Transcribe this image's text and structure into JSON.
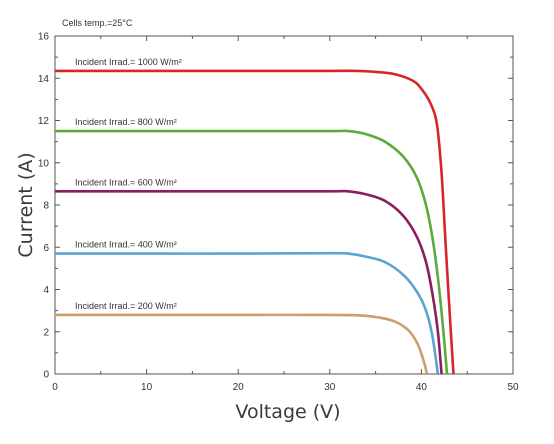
{
  "chart_data": {
    "type": "line",
    "title": "",
    "annotation": "Cells temp.=25°C",
    "xlabel": "Voltage (V)",
    "ylabel": "Current (A)",
    "xlim": [
      0,
      50
    ],
    "ylim": [
      0,
      16
    ],
    "x_ticks": [
      0,
      10,
      20,
      30,
      40,
      50
    ],
    "y_ticks": [
      0,
      2,
      4,
      6,
      8,
      10,
      12,
      14,
      16
    ],
    "grid": false,
    "series": [
      {
        "name": "Incident Irrad.= 1000 W/m²",
        "color": "#d7262b",
        "points": [
          [
            0,
            14.35
          ],
          [
            10,
            14.35
          ],
          [
            20,
            14.35
          ],
          [
            30,
            14.35
          ],
          [
            33,
            14.35
          ],
          [
            35,
            14.3
          ],
          [
            37,
            14.2
          ],
          [
            39,
            13.9
          ],
          [
            40,
            13.5
          ],
          [
            41,
            12.8
          ],
          [
            41.7,
            11.8
          ],
          [
            42.2,
            9.5
          ],
          [
            42.6,
            6.5
          ],
          [
            43.0,
            3.5
          ],
          [
            43.5,
            0
          ]
        ]
      },
      {
        "name": "Incident Irrad.= 800 W/m²",
        "color": "#5aaa3c",
        "points": [
          [
            0,
            11.5
          ],
          [
            10,
            11.5
          ],
          [
            20,
            11.5
          ],
          [
            30,
            11.5
          ],
          [
            32,
            11.5
          ],
          [
            34,
            11.35
          ],
          [
            36,
            11.0
          ],
          [
            38,
            10.3
          ],
          [
            39.5,
            9.3
          ],
          [
            40.5,
            8.0
          ],
          [
            41.3,
            6.2
          ],
          [
            41.9,
            4.2
          ],
          [
            42.4,
            2.0
          ],
          [
            42.8,
            0
          ]
        ]
      },
      {
        "name": "Incident Irrad.= 600 W/m²",
        "color": "#8b1d5f",
        "points": [
          [
            0,
            8.65
          ],
          [
            10,
            8.65
          ],
          [
            20,
            8.65
          ],
          [
            30,
            8.65
          ],
          [
            32,
            8.65
          ],
          [
            34,
            8.5
          ],
          [
            36,
            8.2
          ],
          [
            38,
            7.5
          ],
          [
            39.5,
            6.5
          ],
          [
            40.5,
            5.3
          ],
          [
            41.2,
            3.8
          ],
          [
            41.8,
            2.0
          ],
          [
            42.2,
            0
          ]
        ]
      },
      {
        "name": "Incident Irrad.= 400 W/m²",
        "color": "#5ba3d0",
        "points": [
          [
            0,
            5.7
          ],
          [
            10,
            5.7
          ],
          [
            20,
            5.7
          ],
          [
            30,
            5.72
          ],
          [
            32,
            5.7
          ],
          [
            34,
            5.55
          ],
          [
            36,
            5.3
          ],
          [
            38,
            4.7
          ],
          [
            39.5,
            3.9
          ],
          [
            40.5,
            3.0
          ],
          [
            41.2,
            1.8
          ],
          [
            41.8,
            0
          ]
        ]
      },
      {
        "name": "Incident Irrad.= 200 W/m²",
        "color": "#c9a06c",
        "points": [
          [
            0,
            2.8
          ],
          [
            10,
            2.8
          ],
          [
            20,
            2.8
          ],
          [
            30,
            2.8
          ],
          [
            33,
            2.78
          ],
          [
            35,
            2.7
          ],
          [
            37,
            2.5
          ],
          [
            38.5,
            2.1
          ],
          [
            39.5,
            1.5
          ],
          [
            40.2,
            0.7
          ],
          [
            40.6,
            0
          ]
        ]
      }
    ]
  }
}
